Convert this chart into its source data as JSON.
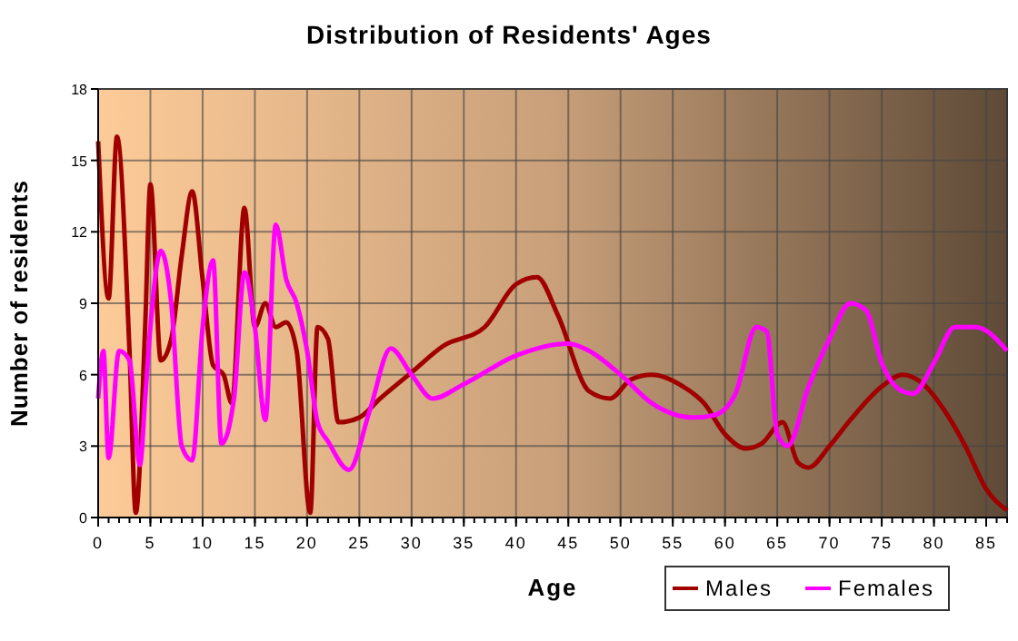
{
  "chart_data": {
    "type": "line",
    "title": "Distribution of Residents' Ages",
    "xlabel": "Age",
    "ylabel": "Number of residents",
    "xlim": [
      0,
      87
    ],
    "xticks": [
      0,
      5,
      10,
      15,
      20,
      25,
      30,
      35,
      40,
      45,
      50,
      55,
      60,
      65,
      70,
      75,
      80,
      85
    ],
    "ylim": [
      0,
      18
    ],
    "yticks": [
      0,
      3,
      6,
      9,
      12,
      15,
      18
    ],
    "grid": true,
    "legend": "bottom right",
    "series": [
      {
        "name": "Males",
        "color": "#a00000",
        "x": [
          0,
          1,
          1.8,
          3,
          3.6,
          4.5,
          5,
          6,
          7,
          8,
          9,
          10,
          11,
          12,
          12.8,
          14,
          15,
          16,
          17,
          18,
          19,
          20.3,
          21,
          22,
          23,
          25,
          27,
          30,
          33,
          37,
          40,
          42,
          44,
          47,
          49,
          51,
          53,
          56,
          58,
          60,
          62,
          63.5,
          65.5,
          67,
          68,
          70,
          72,
          75,
          77,
          79,
          81,
          83,
          85,
          87
        ],
        "values": [
          15.8,
          9.2,
          16,
          7,
          0.2,
          8,
          14,
          6.6,
          7.5,
          11,
          13.7,
          10,
          6.4,
          6,
          4.8,
          13,
          8,
          9,
          8,
          8.2,
          7,
          0.2,
          8,
          7.5,
          4,
          4.2,
          5,
          6.1,
          7.2,
          8,
          9.8,
          10.1,
          8.5,
          5.3,
          5,
          5.8,
          6,
          5.5,
          4.8,
          3.5,
          2.9,
          3.1,
          4,
          2.3,
          2.1,
          3,
          4.1,
          5.5,
          6,
          5.6,
          4.5,
          3,
          1.2,
          0.3
        ]
      },
      {
        "name": "Females",
        "color": "#ff00ff",
        "x": [
          0,
          0.5,
          1,
          2,
          3,
          4,
          4.5,
          5,
          6,
          7,
          8,
          9,
          10,
          11,
          11.8,
          13,
          14,
          15,
          16,
          17,
          18,
          19,
          20,
          21,
          22,
          24,
          26,
          28,
          30,
          32,
          35,
          40,
          45,
          47,
          50,
          53,
          57,
          59,
          61,
          63,
          64,
          65,
          66,
          68,
          70,
          72,
          73.5,
          75,
          77,
          78,
          80,
          82,
          84,
          87
        ],
        "values": [
          5,
          7,
          2.5,
          7,
          6.6,
          2.2,
          5,
          8,
          11.2,
          9,
          3,
          2.4,
          8,
          10.8,
          3.1,
          5,
          10.3,
          8,
          4.1,
          12.3,
          10,
          9,
          7,
          4,
          3.2,
          2,
          4.5,
          7.1,
          6,
          5,
          5.6,
          6.8,
          7.3,
          7,
          6,
          4.8,
          4.2,
          4.3,
          5.2,
          8,
          7.8,
          3.5,
          3,
          5.5,
          7.5,
          9,
          8.7,
          6.5,
          5.3,
          5.2,
          6.5,
          8,
          8,
          7
        ]
      }
    ]
  }
}
